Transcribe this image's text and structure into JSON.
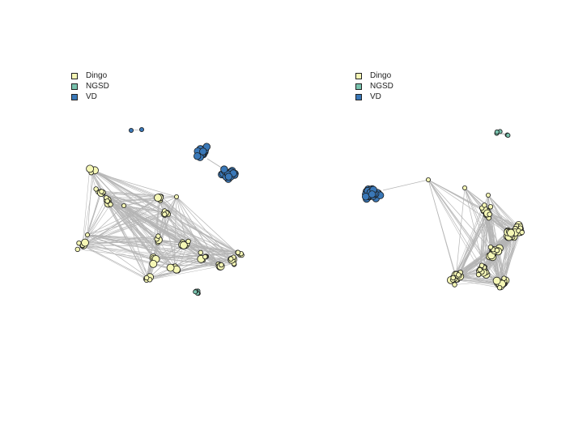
{
  "legend": {
    "items": [
      {
        "label": "Dingo",
        "color": "#f5f7b5"
      },
      {
        "label": "NGSD",
        "color": "#78c2ad"
      },
      {
        "label": "VD",
        "color": "#3a78b8"
      }
    ]
  },
  "colors": {
    "edge": "#b5b5b5",
    "node_stroke": "#1a1a1a"
  },
  "panels": [
    {
      "name": "left-network",
      "groups": [
        {
          "category": "VD",
          "kind": "cluster",
          "count": 2,
          "size": "small"
        },
        {
          "category": "VD",
          "kind": "cluster",
          "count": 18,
          "size": "medium"
        },
        {
          "category": "VD",
          "kind": "cluster",
          "count": 22,
          "size": "medium"
        },
        {
          "category": "NGSD",
          "kind": "cluster",
          "count": 5,
          "size": "small"
        },
        {
          "category": "Dingo",
          "kind": "network",
          "count": 90,
          "size": "mixed"
        }
      ]
    },
    {
      "name": "right-network",
      "groups": [
        {
          "category": "NGSD",
          "kind": "cluster",
          "count": 5,
          "size": "small"
        },
        {
          "category": "VD",
          "kind": "cluster",
          "count": 30,
          "size": "medium"
        },
        {
          "category": "Dingo",
          "kind": "network",
          "count": 110,
          "size": "mixed"
        }
      ]
    }
  ]
}
